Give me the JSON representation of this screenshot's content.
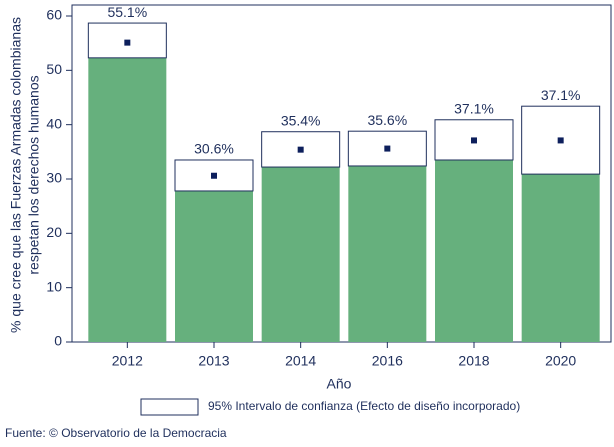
{
  "chart_data": {
    "type": "bar",
    "ylabel": [
      "% que cree que las Fuerzas Armadas colombianas",
      "respetan los derechos humanos"
    ],
    "xlabel": "Año",
    "categories": [
      "2012",
      "2013",
      "2014",
      "2016",
      "2018",
      "2020"
    ],
    "values": [
      55.1,
      30.6,
      35.4,
      35.6,
      37.1,
      37.1
    ],
    "value_labels": [
      "55.1%",
      "30.6%",
      "35.4%",
      "35.6%",
      "37.1%",
      "37.1%"
    ],
    "lower": [
      52.3,
      27.8,
      32.2,
      32.4,
      33.5,
      30.9
    ],
    "upper": [
      58.7,
      33.5,
      38.7,
      38.8,
      40.9,
      43.4
    ],
    "color": "#66b07d",
    "point_color": "#0d1f5c",
    "interval_label": "95% Intervalo de confianza (Efecto de diseño incorporado)",
    "ylim": [
      0,
      60
    ],
    "yticks": [
      0,
      10,
      20,
      30,
      40,
      50,
      60
    ],
    "source": "Fuente: © Observatorio de la Democracia"
  }
}
